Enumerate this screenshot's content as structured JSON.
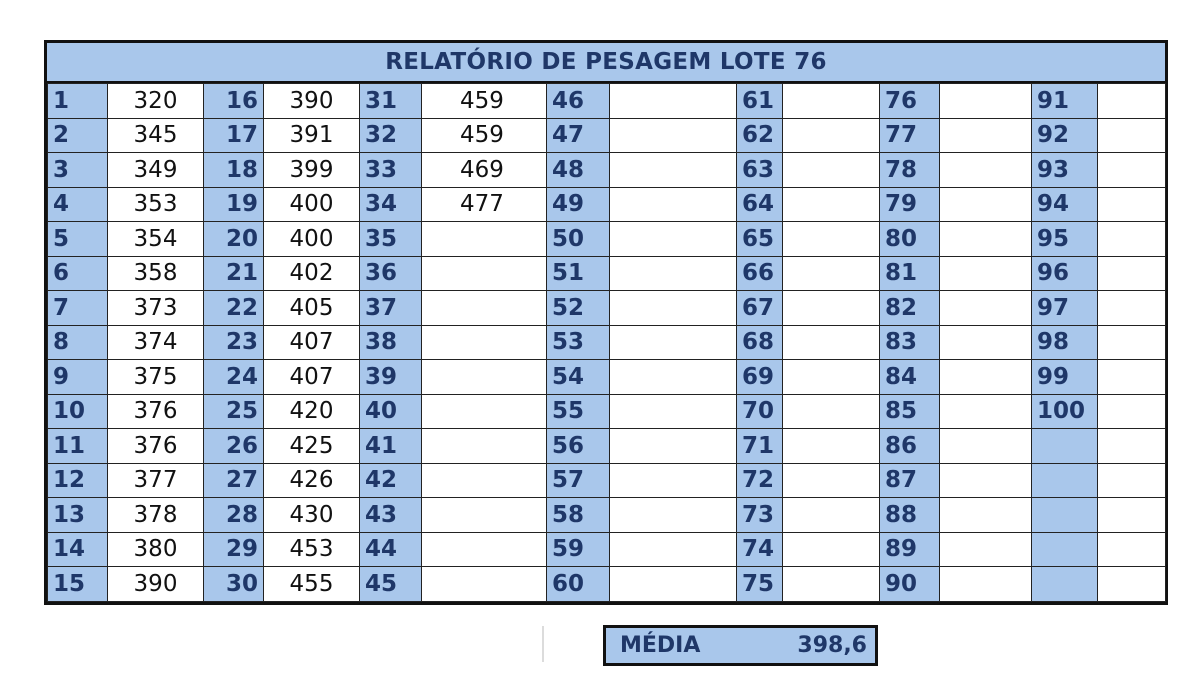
{
  "title": "RELATÓRIO DE PESAGEM LOTE 76",
  "columns": [
    {
      "numbers": [
        "1",
        "2",
        "3",
        "4",
        "5",
        "6",
        "7",
        "8",
        "9",
        "10",
        "11",
        "12",
        "13",
        "14",
        "15"
      ],
      "values": [
        "320",
        "345",
        "349",
        "353",
        "354",
        "358",
        "373",
        "374",
        "375",
        "376",
        "376",
        "377",
        "378",
        "380",
        "390"
      ]
    },
    {
      "numbers": [
        "16",
        "17",
        "18",
        "19",
        "20",
        "21",
        "22",
        "23",
        "24",
        "25",
        "26",
        "27",
        "28",
        "29",
        "30"
      ],
      "values": [
        "390",
        "391",
        "399",
        "400",
        "400",
        "402",
        "405",
        "407",
        "407",
        "420",
        "425",
        "426",
        "430",
        "453",
        "455"
      ]
    },
    {
      "numbers": [
        "31",
        "32",
        "33",
        "34",
        "35",
        "36",
        "37",
        "38",
        "39",
        "40",
        "41",
        "42",
        "43",
        "44",
        "45"
      ],
      "values": [
        "459",
        "459",
        "469",
        "477",
        "",
        "",
        "",
        "",
        "",
        "",
        "",
        "",
        "",
        "",
        ""
      ]
    },
    {
      "numbers": [
        "46",
        "47",
        "48",
        "49",
        "50",
        "51",
        "52",
        "53",
        "54",
        "55",
        "56",
        "57",
        "58",
        "59",
        "60"
      ],
      "values": [
        "",
        "",
        "",
        "",
        "",
        "",
        "",
        "",
        "",
        "",
        "",
        "",
        "",
        "",
        ""
      ]
    },
    {
      "numbers": [
        "61",
        "62",
        "63",
        "64",
        "65",
        "66",
        "67",
        "68",
        "69",
        "70",
        "71",
        "72",
        "73",
        "74",
        "75"
      ],
      "values": [
        "",
        "",
        "",
        "",
        "",
        "",
        "",
        "",
        "",
        "",
        "",
        "",
        "",
        "",
        ""
      ]
    },
    {
      "numbers": [
        "76",
        "77",
        "78",
        "79",
        "80",
        "81",
        "82",
        "83",
        "84",
        "85",
        "86",
        "87",
        "88",
        "89",
        "90"
      ],
      "values": [
        "",
        "",
        "",
        "",
        "",
        "",
        "",
        "",
        "",
        "",
        "",
        "",
        "",
        "",
        ""
      ]
    },
    {
      "numbers": [
        "91",
        "92",
        "93",
        "94",
        "95",
        "96",
        "97",
        "98",
        "99",
        "100",
        "",
        "",
        "",
        "",
        ""
      ],
      "values": [
        "",
        "",
        "",
        "",
        "",
        "",
        "",
        "",
        "",
        "",
        "",
        "",
        "",
        "",
        ""
      ]
    }
  ],
  "media": {
    "label": "MÉDIA",
    "value": "398,6"
  },
  "colors": {
    "header_blue": "#a9c7eb",
    "text_navy": "#1f3768"
  }
}
